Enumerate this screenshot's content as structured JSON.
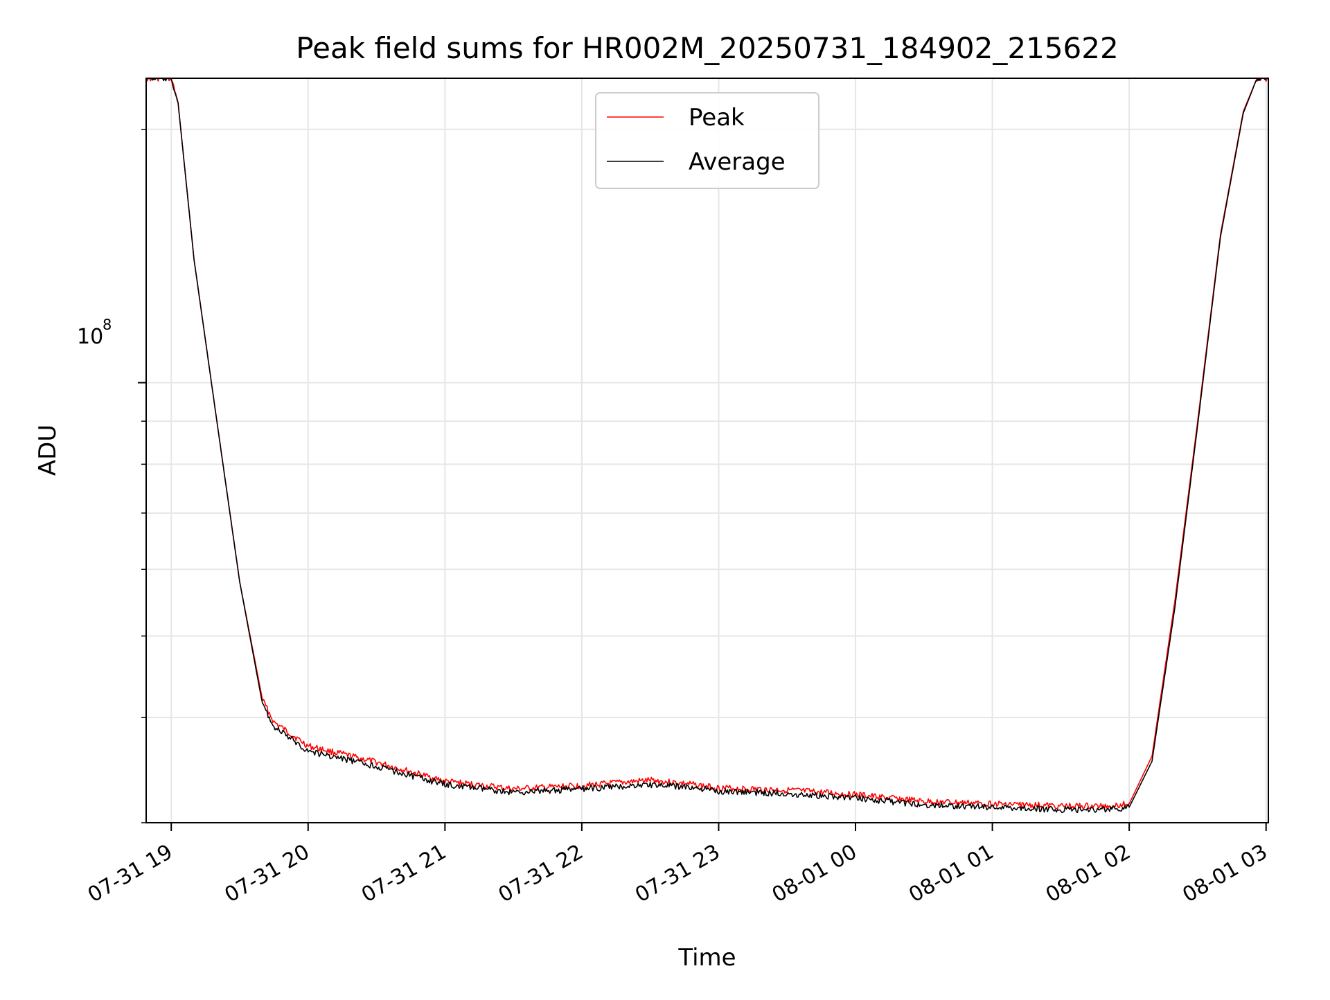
{
  "chart_data": {
    "type": "line",
    "title": "Peak field sums for HR002M_20250731_184902_215622",
    "xlabel": "Time",
    "ylabel": "ADU",
    "yscale": "log",
    "ylim": [
      30000000,
      230000000
    ],
    "xlim": [
      "07-31 18:49",
      "08-01 03:01"
    ],
    "grid": true,
    "legend_position": "top-center",
    "x_ticks": [
      "07-31 19",
      "07-31 20",
      "07-31 21",
      "07-31 22",
      "07-31 23",
      "08-01 00",
      "08-01 01",
      "08-01 02",
      "08-01 03"
    ],
    "y_tick_label": "10^8",
    "series": [
      {
        "name": "Peak",
        "color": "#ff0000",
        "x": [
          "07-31 18:49",
          "07-31 19:00",
          "07-31 19:03",
          "07-31 19:10",
          "07-31 19:20",
          "07-31 19:30",
          "07-31 19:40",
          "07-31 19:45",
          "07-31 20:00",
          "07-31 20:30",
          "07-31 21:00",
          "07-31 21:30",
          "07-31 22:00",
          "07-31 22:30",
          "07-31 22:45",
          "07-31 23:00",
          "07-31 23:30",
          "08-01 00:00",
          "08-01 00:30",
          "08-01 01:00",
          "08-01 01:30",
          "08-01 01:50",
          "08-01 02:00",
          "08-01 02:10",
          "08-01 02:20",
          "08-01 02:30",
          "08-01 02:40",
          "08-01 02:50",
          "08-01 02:56",
          "08-01 03:01"
        ],
        "values": [
          230000000,
          230000000,
          215000000,
          140000000,
          90000000,
          58000000,
          42000000,
          39500000,
          37000000,
          35400000,
          33600000,
          32900000,
          33200000,
          33700000,
          33400000,
          33000000,
          32800000,
          32400000,
          31800000,
          31600000,
          31400000,
          31400000,
          31600000,
          36000000,
          55000000,
          90000000,
          150000000,
          210000000,
          230000000,
          230000000
        ]
      },
      {
        "name": "Average",
        "color": "#000000",
        "x": [
          "07-31 18:49",
          "07-31 19:00",
          "07-31 19:03",
          "07-31 19:10",
          "07-31 19:20",
          "07-31 19:30",
          "07-31 19:40",
          "07-31 19:45",
          "07-31 20:00",
          "07-31 20:30",
          "07-31 21:00",
          "07-31 21:30",
          "07-31 22:00",
          "07-31 22:30",
          "07-31 22:45",
          "07-31 23:00",
          "07-31 23:30",
          "08-01 00:00",
          "08-01 00:30",
          "08-01 01:00",
          "08-01 01:30",
          "08-01 01:50",
          "08-01 02:00",
          "08-01 02:10",
          "08-01 02:20",
          "08-01 02:30",
          "08-01 02:40",
          "08-01 02:50",
          "08-01 02:56",
          "08-01 03:01"
        ],
        "values": [
          230000000,
          230000000,
          215000000,
          140000000,
          90000000,
          58000000,
          41500000,
          39000000,
          36500000,
          35000000,
          33300000,
          32600000,
          32900000,
          33300000,
          33100000,
          32700000,
          32500000,
          32100000,
          31500000,
          31300000,
          31100000,
          31100000,
          31300000,
          35500000,
          54000000,
          89000000,
          149000000,
          209000000,
          230000000,
          230000000
        ]
      }
    ]
  }
}
